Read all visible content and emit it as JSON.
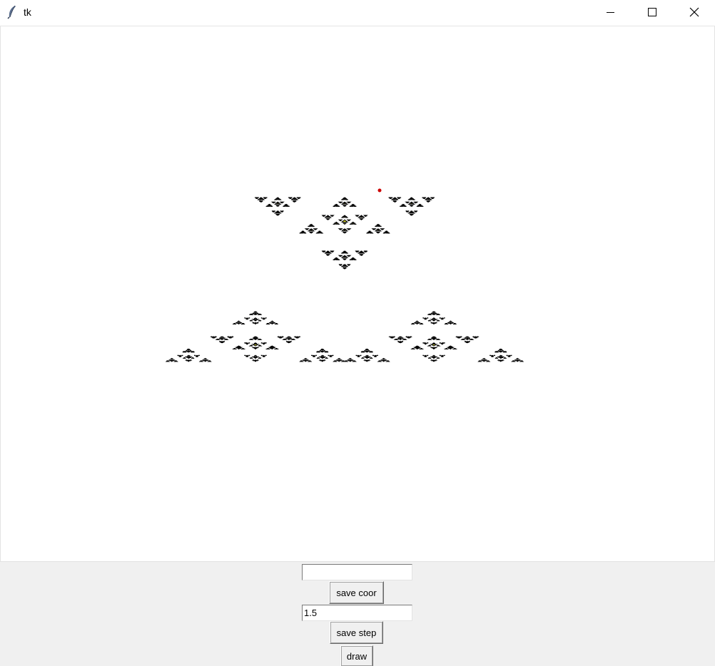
{
  "window": {
    "title": "tk",
    "controls": {
      "minimize": "minimize-icon",
      "maximize": "maximize-icon",
      "close": "close-icon"
    }
  },
  "canvas": {
    "background": "#ffffff",
    "fractal_fill": "#ffff33",
    "fractal_outline": "#000000",
    "marker_color": "#cc0000",
    "fractal_depth": 5
  },
  "controls": {
    "coor_entry_value": "",
    "save_coor_label": "save coor",
    "step_entry_value": "1.5",
    "save_step_label": "save step",
    "draw_label": "draw"
  }
}
